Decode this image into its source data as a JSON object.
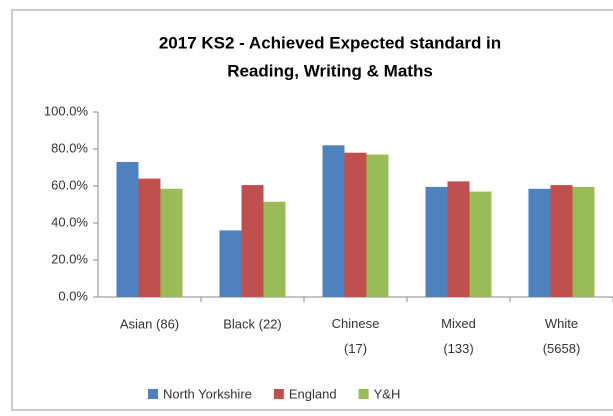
{
  "chart_data": {
    "type": "bar",
    "title": [
      "2017 KS2 - Achieved Expected standard in",
      "Reading, Writing & Maths"
    ],
    "categories": [
      "Asian (86)",
      "Black (22)",
      "Chinese (17)",
      "Mixed (133)",
      "White (5658)"
    ],
    "series": [
      {
        "name": "North Yorkshire",
        "color": "#4f81bd",
        "values": [
          73,
          36,
          82,
          59.5,
          58.5
        ]
      },
      {
        "name": "England",
        "color": "#c0504d",
        "values": [
          64,
          60.5,
          78,
          62.5,
          60.5
        ]
      },
      {
        "name": "Y&H",
        "color": "#9bbb59",
        "values": [
          58.5,
          51.5,
          77,
          57,
          59.5
        ]
      }
    ],
    "ylim": [
      0,
      100
    ],
    "yticks": [
      {
        "value": 0,
        "label": "0.0%"
      },
      {
        "value": 20,
        "label": "20.0%"
      },
      {
        "value": 40,
        "label": "40.0%"
      },
      {
        "value": 60,
        "label": "60.0%"
      },
      {
        "value": 80,
        "label": "80.0%"
      },
      {
        "value": 100,
        "label": "100.0%"
      }
    ],
    "grid": false,
    "legend": "bottom"
  }
}
